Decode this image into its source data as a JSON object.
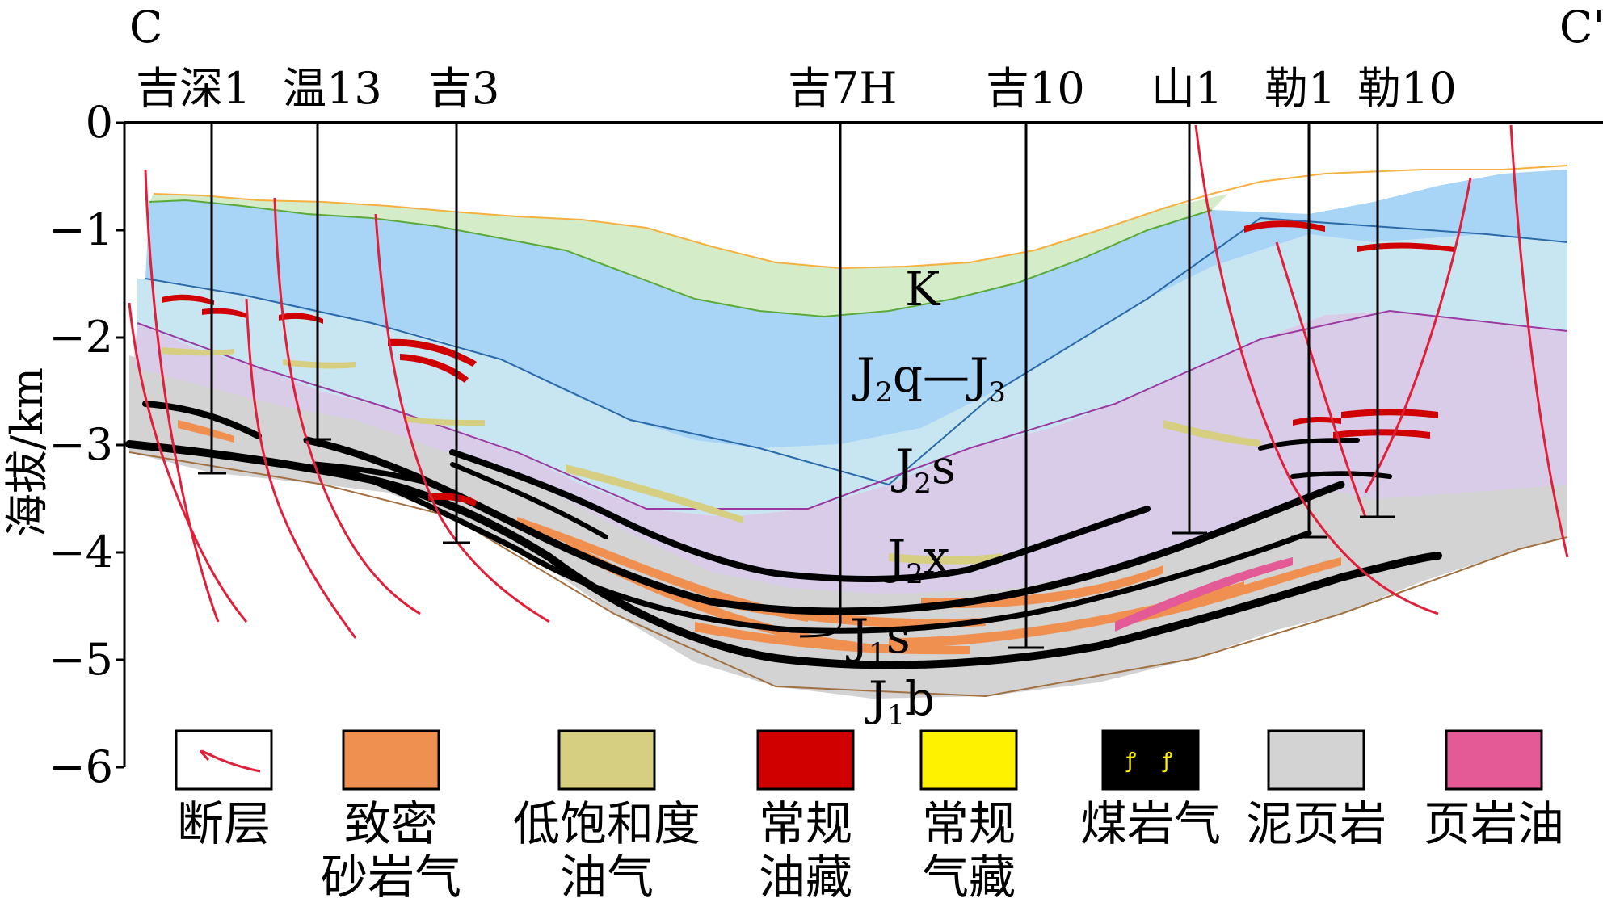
{
  "section": {
    "start_label": "C",
    "end_label": "C'"
  },
  "axis": {
    "label": "海拔/km",
    "ticks": [
      "0",
      "−1",
      "−2",
      "−3",
      "−4",
      "−5",
      "−6"
    ]
  },
  "wells": [
    {
      "name": "吉深1"
    },
    {
      "name": "温13"
    },
    {
      "name": "吉3"
    },
    {
      "name": "吉7H"
    },
    {
      "name": "吉10"
    },
    {
      "name": "山1"
    },
    {
      "name": "勒1"
    },
    {
      "name": "勒10"
    }
  ],
  "units": {
    "k": {
      "main": "K",
      "sub": ""
    },
    "j2q_j3": {
      "p1": "J",
      "s1": "2",
      "p2": "q—J",
      "s2": "3"
    },
    "j2s": {
      "main": "J",
      "sub": "2",
      "suffix": "s"
    },
    "j2x": {
      "main": "J",
      "sub": "2",
      "suffix": "x"
    },
    "j1s": {
      "main": "J",
      "sub": "1",
      "suffix": "s"
    },
    "j1b": {
      "main": "J",
      "sub": "1",
      "suffix": "b"
    }
  },
  "legend": [
    {
      "name": "fault",
      "line1": "断层",
      "line2": ""
    },
    {
      "name": "tight-sandstone-gas",
      "line1": "致密",
      "line2": "砂岩气",
      "color": "#f09050"
    },
    {
      "name": "low-saturation-oil-gas",
      "line1": "低饱和度",
      "line2": "油气",
      "color": "#d6ce80"
    },
    {
      "name": "conventional-oil",
      "line1": "常规",
      "line2": "油藏",
      "color": "#d00000"
    },
    {
      "name": "conventional-gas",
      "line1": "常规",
      "line2": "气藏",
      "color": "#fff200"
    },
    {
      "name": "coal-gas",
      "line1": "煤岩气",
      "line2": "",
      "color": "#000000"
    },
    {
      "name": "mudstone-shale",
      "line1": "泥页岩",
      "line2": "",
      "color": "#d3d3d3"
    },
    {
      "name": "shale-oil",
      "line1": "页岩油",
      "line2": "",
      "color": "#e45a96"
    }
  ],
  "colors": {
    "k_fill": "#d5ecc8",
    "j2q_fill": "#a8d4f5",
    "j2s_fill": "#c8e6f2",
    "j2x_fill": "#d8cce8",
    "base_fill": "#d3d3d3",
    "fault": "#e0203a"
  }
}
